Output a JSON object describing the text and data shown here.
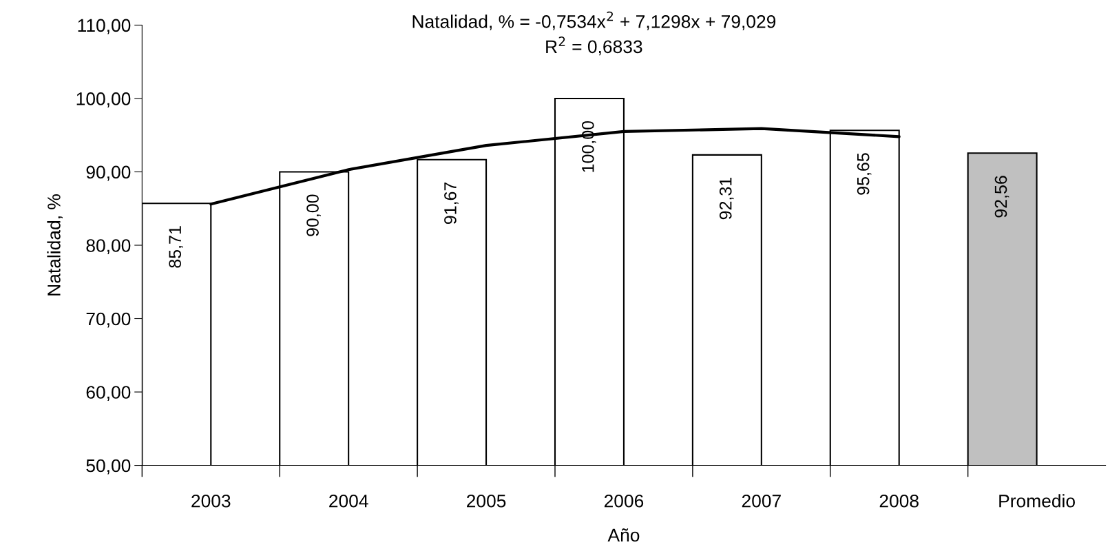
{
  "chart_data": {
    "type": "bar",
    "xlabel": "Año",
    "ylabel": "Natalidad, %",
    "categories": [
      "2003",
      "2004",
      "2005",
      "2006",
      "2007",
      "2008",
      "Promedio"
    ],
    "values": [
      85.71,
      90.0,
      91.67,
      100.0,
      92.31,
      95.65,
      92.56
    ],
    "colors": [
      "#ffffff",
      "#ffffff",
      "#ffffff",
      "#ffffff",
      "#ffffff",
      "#ffffff",
      "#c0c0c0"
    ],
    "value_labels": [
      "85,71",
      "90,00",
      "91,67",
      "100,00",
      "92,31",
      "95,65",
      "92,56"
    ],
    "series": [
      {
        "type": "line",
        "color": "#000000",
        "values": [
          85.6,
          90.3,
          93.6,
          95.5,
          95.9,
          94.8,
          null
        ]
      }
    ],
    "annotations": [
      "Natalidad, % = -0,7534x$^{2}$ + 7,1298x + 79,029",
      "R$^{2}$ = 0,6833"
    ],
    "ylim": [
      50,
      110
    ],
    "yticks": [
      {
        "value": 50,
        "label": "50,00"
      },
      {
        "value": 60,
        "label": "60,00"
      },
      {
        "value": 70,
        "label": "70,00"
      },
      {
        "value": 80,
        "label": "80,00"
      },
      {
        "value": 90,
        "label": "90,00"
      },
      {
        "value": 100,
        "label": "100,00"
      },
      {
        "value": 110,
        "label": "110,00"
      }
    ],
    "grid": false,
    "legend": false
  }
}
